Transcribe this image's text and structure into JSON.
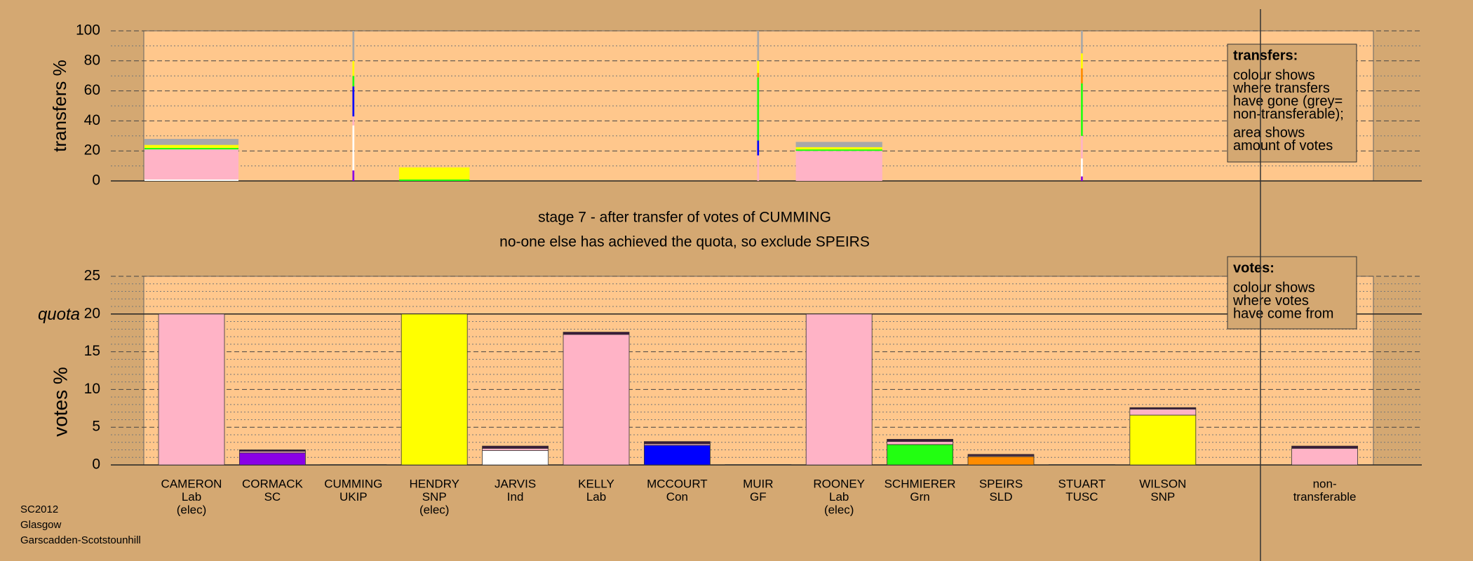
{
  "chart_data": [
    {
      "type": "stacked-bar",
      "ylabel": "transfers %",
      "ylim": [
        0,
        100
      ],
      "yticks": [
        0,
        20,
        40,
        60,
        80,
        100
      ],
      "yminor": [
        10,
        30,
        50,
        70,
        90
      ],
      "grid": true,
      "widths": [
        10,
        0,
        0.2,
        7.5,
        0,
        0,
        0,
        0.2,
        9.2,
        0,
        0,
        0.2,
        0,
        0,
        0
      ],
      "series": [
        {
          "color": "#8a00e6",
          "values": [
            0,
            0,
            7,
            0,
            0,
            0,
            0,
            0,
            0,
            0,
            0,
            3,
            0,
            0,
            0
          ]
        },
        {
          "color": "#ffffff",
          "values": [
            1,
            0,
            30,
            0,
            0,
            0,
            0,
            0,
            0,
            0,
            0,
            12,
            0,
            0,
            0
          ]
        },
        {
          "color": "#ffb3c6",
          "values": [
            20,
            0,
            6,
            0,
            0,
            0,
            0,
            17,
            20,
            0,
            0,
            15,
            0,
            0,
            0
          ]
        },
        {
          "color": "#0000ff",
          "values": [
            0,
            0,
            20,
            0,
            0,
            0,
            0,
            10,
            0,
            0,
            0,
            0,
            0,
            0,
            0
          ]
        },
        {
          "color": "#22ff11",
          "values": [
            1,
            0,
            7,
            1,
            0,
            0,
            0,
            42,
            1,
            0,
            0,
            35,
            0,
            0,
            0
          ]
        },
        {
          "color": "#ff8c00",
          "values": [
            0,
            0,
            0,
            0,
            0,
            0,
            0,
            3,
            0,
            0,
            0,
            10,
            0,
            0,
            0
          ]
        },
        {
          "color": "#ffff00",
          "values": [
            2,
            0,
            10,
            8,
            0,
            0,
            0,
            8,
            1.5,
            0,
            0,
            10,
            0,
            0,
            0
          ]
        },
        {
          "color": "#a8a8a8",
          "values": [
            4,
            0,
            20,
            0,
            0,
            0,
            0,
            20,
            3.5,
            0,
            0,
            15,
            0,
            0,
            0
          ]
        }
      ],
      "legend": {
        "title": "transfers:",
        "lines": [
          "colour shows",
          "where transfers",
          "have gone (grey=",
          "non-transferable);"
        ],
        "lines2": [
          "area shows",
          "amount of votes"
        ]
      }
    },
    {
      "type": "stacked-bar",
      "title": "stage 7 - after transfer of votes of CUMMING",
      "subtitle": "no-one else has achieved the quota, so exclude SPEIRS",
      "ylabel": "votes %",
      "ylim": [
        0,
        25
      ],
      "yticks": [
        0,
        5,
        10,
        15,
        20,
        25
      ],
      "yminor": [
        1,
        2,
        3,
        4,
        6,
        7,
        8,
        9,
        11,
        12,
        13,
        14,
        16,
        17,
        18,
        19,
        21,
        22,
        23,
        24
      ],
      "grid": true,
      "quota": {
        "value": 20,
        "label": "quota"
      },
      "categories": [
        [
          "CAMERON",
          "Lab",
          "(elec)"
        ],
        [
          "CORMACK",
          "SC"
        ],
        [
          "CUMMING",
          "UKIP"
        ],
        [
          "HENDRY",
          "SNP",
          "(elec)"
        ],
        [
          "JARVIS",
          "Ind"
        ],
        [
          "KELLY",
          "Lab"
        ],
        [
          "MCCOURT",
          "Con"
        ],
        [
          "MUIR",
          "GF"
        ],
        [
          "ROONEY",
          "Lab",
          "(elec)"
        ],
        [
          "SCHMIERER",
          "Grn"
        ],
        [
          "SPEIRS",
          "SLD"
        ],
        [
          "STUART",
          "TUSC"
        ],
        [
          "WILSON",
          "SNP"
        ],
        null,
        [
          "non-",
          "transferable"
        ]
      ],
      "series": [
        {
          "color": "#ffffff",
          "values": [
            0,
            0,
            0,
            0,
            1.9,
            0,
            0,
            0,
            0,
            0,
            0,
            0,
            0,
            0,
            0
          ]
        },
        {
          "color": "#8a00e6",
          "values": [
            0,
            1.6,
            0,
            0,
            0,
            0,
            0,
            0,
            0,
            0,
            0,
            0,
            0,
            0,
            0
          ]
        },
        {
          "color": "#0000ff",
          "values": [
            0,
            0,
            0,
            0,
            0,
            0,
            2.6,
            0,
            0,
            0,
            0,
            0,
            0,
            0,
            0
          ]
        },
        {
          "color": "#22ff11",
          "values": [
            0,
            0,
            0,
            0,
            0,
            0,
            0,
            0,
            0,
            2.7,
            0,
            0,
            0,
            0,
            0
          ]
        },
        {
          "color": "#ff8c00",
          "values": [
            0,
            0,
            0,
            0,
            0,
            0,
            0,
            0,
            0,
            0,
            1.1,
            0,
            0,
            0,
            0
          ]
        },
        {
          "color": "#ffff00",
          "values": [
            0,
            0,
            0,
            20,
            0,
            0,
            0,
            0,
            0,
            0,
            0,
            0,
            6.6,
            0,
            0
          ]
        },
        {
          "color": "#ffb3c6",
          "values": [
            20,
            0.2,
            0,
            0,
            0.3,
            17.3,
            0.2,
            0,
            20,
            0.4,
            0.1,
            0,
            0.8,
            0,
            2.2
          ]
        },
        {
          "color": "#3a1a3a",
          "values": [
            0,
            0.2,
            0.05,
            0,
            0.3,
            0.3,
            0.3,
            0.05,
            0,
            0.3,
            0.2,
            0.05,
            0.2,
            0,
            0.3
          ]
        }
      ],
      "legend": {
        "title": "votes:",
        "lines": [
          "colour shows",
          "where votes",
          "have come from"
        ]
      },
      "footer": [
        "SC2012",
        "Glasgow",
        "Garscadden-Scotstounhill"
      ]
    }
  ]
}
